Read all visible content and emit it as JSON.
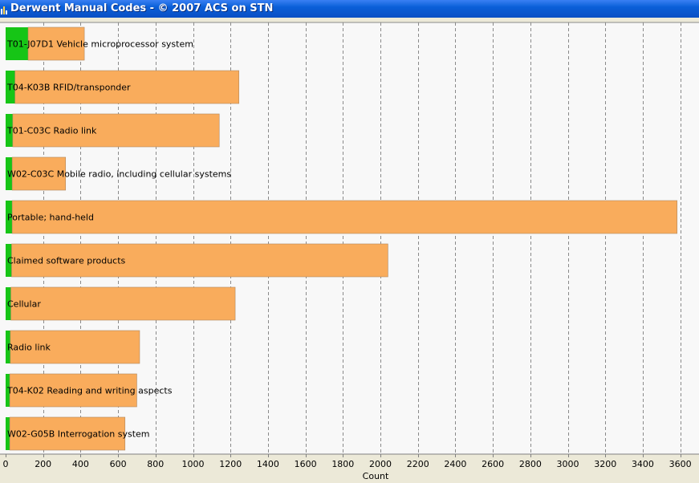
{
  "window": {
    "title": "Derwent Manual Codes - © 2007 ACS on STN"
  },
  "colors": {
    "bar": "#F9AC5C",
    "bar_border": "#B08860",
    "highlight": "#16C516",
    "plot_bg": "#F8F8F8",
    "grid": "#8A8A8A",
    "titlebar": "#0A5FD8"
  },
  "chart_data": {
    "type": "bar",
    "orientation": "horizontal",
    "stacked": true,
    "categories": [
      "T01-J07D1 Vehicle microprocessor system",
      "T04-K03B RFID/transponder",
      "T01-C03C Radio link",
      "W02-C03C Mobile radio, including cellular systems",
      "Portable; hand-held",
      "Claimed software products",
      "Cellular",
      "Radio link",
      "T04-K02 Reading and writing aspects",
      "W02-G05B Interrogation system"
    ],
    "series": [
      {
        "color": "#16C516",
        "values": [
          120,
          50,
          38,
          35,
          35,
          32,
          28,
          25,
          22,
          22
        ]
      },
      {
        "color": "#F9AC5C",
        "values": [
          300,
          1195,
          1102,
          285,
          3548,
          2008,
          1197,
          690,
          678,
          615
        ]
      }
    ],
    "xlabel": "Count",
    "ylabel": "",
    "xlim": [
      0,
      3700
    ],
    "xticks": [
      0,
      200,
      400,
      600,
      800,
      1000,
      1200,
      1400,
      1600,
      1800,
      2000,
      2200,
      2400,
      2600,
      2800,
      3000,
      3200,
      3400,
      3600
    ],
    "grid": "vertical dashed",
    "legend": "none"
  }
}
